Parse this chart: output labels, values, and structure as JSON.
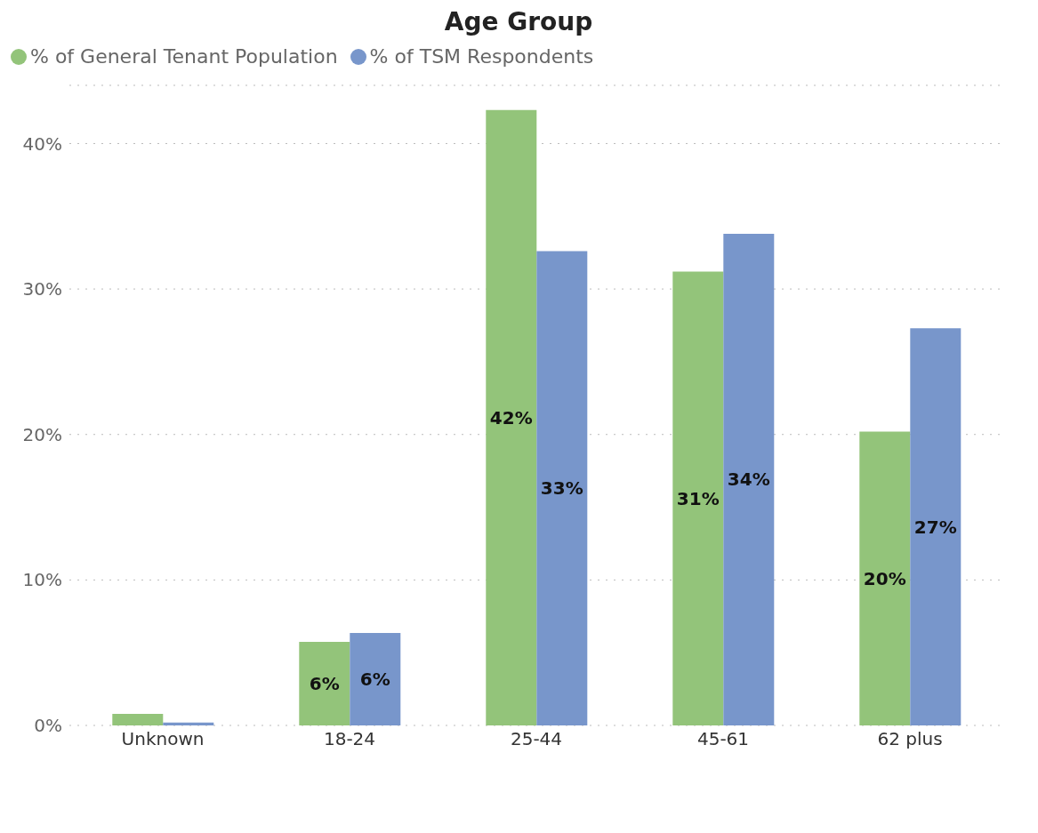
{
  "chart_data": {
    "type": "bar",
    "title": "Age Group",
    "categories": [
      "Unknown",
      "18-24",
      "25-44",
      "45-61",
      "62 plus"
    ],
    "series": [
      {
        "name": "% of General Tenant Population",
        "color": "#93c47a",
        "values": [
          0.8,
          5.75,
          42.3,
          31.2,
          20.2
        ],
        "value_labels": [
          null,
          "6%",
          "42%",
          "31%",
          "20%"
        ]
      },
      {
        "name": "% of TSM Respondents",
        "color": "#7896cb",
        "values": [
          0.2,
          6.35,
          32.6,
          33.8,
          27.3
        ],
        "value_labels": [
          null,
          "6%",
          "33%",
          "34%",
          "27%"
        ]
      }
    ],
    "ylim": [
      0,
      44
    ],
    "yticks": [
      {
        "value": 0,
        "label": "0%"
      },
      {
        "value": 10,
        "label": "10%"
      },
      {
        "value": 20,
        "label": "20%"
      },
      {
        "value": 30,
        "label": "30%"
      },
      {
        "value": 40,
        "label": "40%"
      }
    ],
    "grid": "y",
    "legend": "top left"
  }
}
